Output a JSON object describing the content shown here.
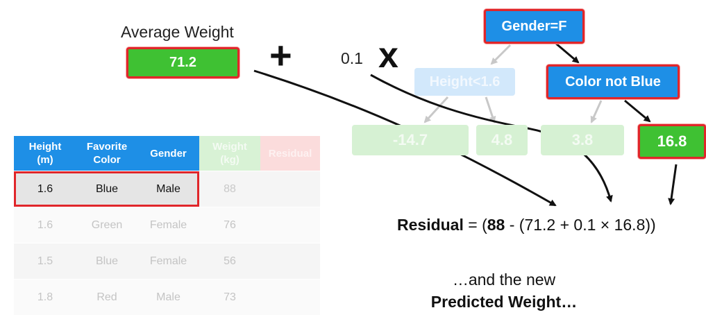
{
  "avg_weight": {
    "label": "Average Weight",
    "value": "71.2"
  },
  "operators": {
    "plus": "+",
    "times": "x"
  },
  "learning_rate": "0.1",
  "tree": {
    "root": "Gender=F",
    "left_split": "Height<1.6",
    "right_split": "Color not Blue",
    "leaves": [
      "-14.7",
      "4.8",
      "3.8",
      "16.8"
    ]
  },
  "table": {
    "headers": [
      [
        "Height",
        "(m)"
      ],
      [
        "Favorite",
        "Color"
      ],
      [
        "Gender"
      ],
      [
        "Weight",
        "(kg)"
      ],
      [
        "Residual"
      ]
    ],
    "rows": [
      [
        "1.6",
        "Blue",
        "Male",
        "88",
        ""
      ],
      [
        "1.6",
        "Green",
        "Female",
        "76",
        ""
      ],
      [
        "1.5",
        "Blue",
        "Female",
        "56",
        ""
      ],
      [
        "1.8",
        "Red",
        "Male",
        "73",
        ""
      ]
    ]
  },
  "equation": {
    "label": "Residual",
    "eq": " = (",
    "observed": "88",
    "rest": " - (71.2 + 0.1 × 16.8))"
  },
  "caption": {
    "line1": "…and the new",
    "line2": "Predicted Weight…"
  }
}
